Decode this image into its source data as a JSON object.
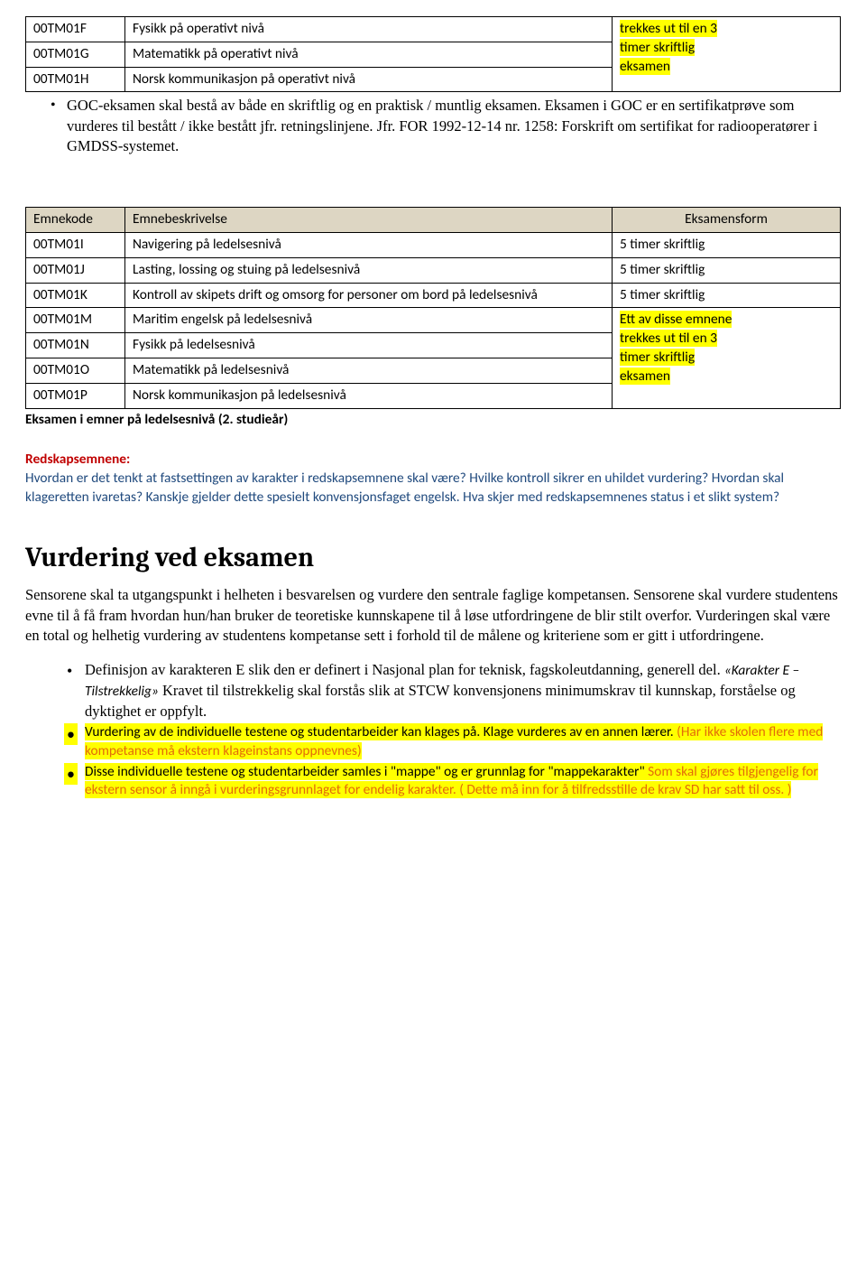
{
  "table1": {
    "rows": [
      {
        "code": "00TM01F",
        "desc": "Fysikk på operativt nivå"
      },
      {
        "code": "00TM01G",
        "desc": "Matematikk på operativt nivå"
      },
      {
        "code": "00TM01H",
        "desc": "Norsk kommunikasjon på operativt nivå"
      }
    ],
    "exam_lines": [
      "trekkes ut til en 3",
      "timer skriftlig",
      "eksamen"
    ]
  },
  "goc_bullet": "GOC-eksamen skal bestå av både en skriftlig og en praktisk / muntlig eksamen. Eksamen i GOC er en sertifikatprøve som vurderes til bestått / ikke bestått jfr. retningslinjene. Jfr. FOR 1992-12-14 nr. 1258: Forskrift om sertifikat for radiooperatører i GMDSS-systemet.",
  "table2": {
    "header": {
      "c1": "Emnekode",
      "c2": "Emnebeskrivelse",
      "c3": "Eksamensform"
    },
    "top_rows": [
      {
        "code": "00TM01I",
        "desc": "Navigering på ledelsesnivå",
        "exam": "5 timer skriftlig"
      },
      {
        "code": "00TM01J",
        "desc": "Lasting, lossing og stuing på ledelsesnivå",
        "exam": "5 timer skriftlig"
      },
      {
        "code": "00TM01K",
        "desc": "Kontroll av skipets drift og omsorg for personer om bord på ledelsesnivå",
        "exam": "5 timer skriftlig"
      }
    ],
    "bottom_rows": [
      {
        "code": "00TM01M",
        "desc": "Maritim engelsk på ledelsesnivå"
      },
      {
        "code": "00TM01N",
        "desc": "Fysikk på ledelsesnivå"
      },
      {
        "code": "00TM01O",
        "desc": "Matematikk på ledelsesnivå"
      },
      {
        "code": "00TM01P",
        "desc": "Norsk kommunikasjon på ledelsesnivå"
      }
    ],
    "exam_merged": [
      "Ett av disse emnene",
      "trekkes ut til en 3",
      "timer skriftlig",
      "eksamen"
    ]
  },
  "eksamen_line": "Eksamen i emner på ledelsesnivå (2. studieår)",
  "redskap": {
    "title": "Redskapsemnene:",
    "body": "Hvordan er det tenkt at fastsettingen av karakter i redskapsemnene skal være? Hvilke kontroll sikrer en uhildet vurdering? Hvordan skal klageretten ivaretas? Kanskje gjelder dette spesielt konvensjonsfaget engelsk. Hva skjer med redskapsemnenes status i et slikt system?"
  },
  "vurdering": {
    "title": "Vurdering ved eksamen",
    "intro": "Sensorene skal ta utgangspunkt i helheten i besvarelsen og vurdere den sentrale faglige kompetansen. Sensorene skal vurdere studentens evne til å få fram hvordan hun/han bruker de teoretiske kunnskapene til å løse utfordringene de blir stilt overfor. Vurderingen skal være en total og helhetig vurdering av studentens kompetanse sett i forhold til de målene og kriteriene som er gitt i utfordringene.",
    "b1_pre": "Definisjon av karakteren E slik den er definert i Nasjonal plan for teknisk, fagskoleutdanning, generell del. ",
    "b1_italic": "«Karakter E – Tilstrekkelig»",
    "b1_post": " Kravet til tilstrekkelig skal forstås slik at STCW konvensjonens minimumskrav til kunnskap, forståelse og dyktighet er oppfylt.",
    "b2_hl": "Vurdering av de individuelle testene og studentarbeider kan klages på. Klage vurderes av en annen lærer.",
    "b2_orange": " (Har ikke skolen flere med kompetanse må ekstern klageinstans oppnevnes)",
    "b3_hl1": "Disse individuelle testene og studentarbeider samles i \"mappe\" og er grunnlag for \"mappekarakter\"",
    "b3_orange": " Som skal gjøres tilgjengelig for ekstern sensor å inngå i vurderingsgrunnlaget for endelig karakter. ( Dette må inn for å tilfredsstille de krav SD har satt til oss. )"
  }
}
